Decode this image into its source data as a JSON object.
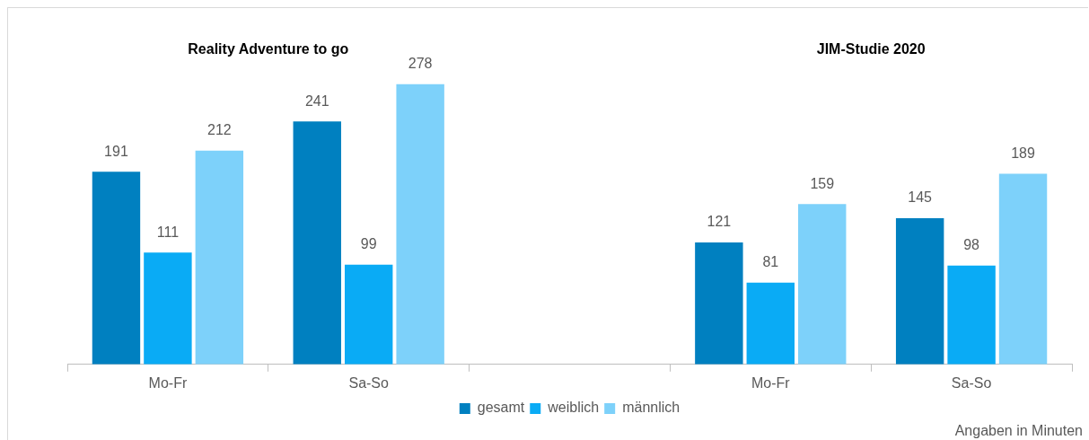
{
  "chart_data": {
    "type": "bar",
    "categories": [
      "Mo-Fr",
      "Sa-So",
      null,
      "Mo-Fr",
      "Sa-So"
    ],
    "series": [
      {
        "name": "gesamt",
        "color": "#0080c0",
        "values": [
          191,
          241,
          null,
          121,
          145
        ]
      },
      {
        "name": "weiblich",
        "color": "#0aabf5",
        "values": [
          111,
          99,
          null,
          81,
          98
        ]
      },
      {
        "name": "männlich",
        "color": "#7dd1fa",
        "values": [
          212,
          278,
          null,
          159,
          189
        ]
      }
    ],
    "data_labels": true,
    "grid": false,
    "legend": "bottom",
    "annotations": [
      "Reality Adventure to go",
      "JIM-Studie 2020",
      "Angaben in Minuten"
    ]
  }
}
